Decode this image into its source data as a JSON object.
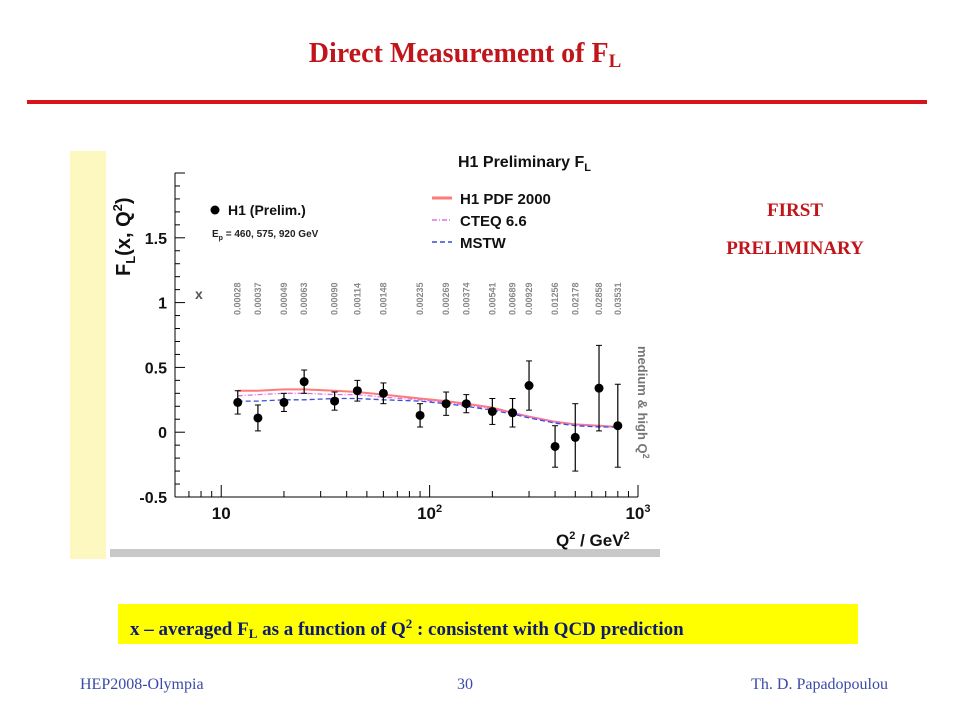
{
  "slide": {
    "title_main": "Direct Measurement of F",
    "title_sub": "L",
    "note_line1": "FIRST",
    "note_line2": "PRELIMINARY",
    "caption": {
      "part1": "x – averaged F",
      "sub1": "L",
      "part2": " as a function of Q",
      "sup1": "2",
      "part3": "  : consistent with QCD  prediction"
    },
    "footer_left": "HEP2008-Olympia",
    "footer_center": "30",
    "footer_right": "Th. D. Papadopoulou"
  },
  "colors": {
    "title": "#c0161b",
    "rule": "#d8141b",
    "caption_bg": "#ffff00",
    "caption_text": "#0d1b6e",
    "footer": "#3a4aa6",
    "h1pdf": "#ff7a7a",
    "cteq": "#e070e0",
    "mstw": "#3b4fd6"
  },
  "chart_data": {
    "type": "scatter",
    "title": "H1 Preliminary F",
    "title_sub": "L",
    "ylabel": "F",
    "ylabel_sub": "L",
    "ylabel_rest": "(x, Q",
    "ylabel_sup": "2",
    "ylabel_close": ")",
    "xlabel": "Q",
    "xlabel_sup1": "2",
    "xlabel_mid": " / GeV",
    "xlabel_sup2": "2",
    "xscale": "log",
    "xlim": [
      6,
      1000
    ],
    "ylim": [
      -0.5,
      2.0
    ],
    "x_ticks": [
      {
        "value": 10,
        "base": "10",
        "exp": ""
      },
      {
        "value": 100,
        "base": "10",
        "exp": "2"
      },
      {
        "value": 1000,
        "base": "10",
        "exp": "3"
      }
    ],
    "y_ticks": [
      {
        "value": -0.5,
        "label": "-0.5"
      },
      {
        "value": 0,
        "label": "0"
      },
      {
        "value": 0.5,
        "label": "0.5"
      },
      {
        "value": 1,
        "label": "1"
      },
      {
        "value": 1.5,
        "label": "1.5"
      }
    ],
    "x_label_title": "x",
    "x_values_label": [
      "0.00028",
      "0.00037",
      "0.00049",
      "0.00063",
      "0.00090",
      "0.00114",
      "0.00148",
      "0.00235",
      "0.00269",
      "0.00374",
      "0.00541",
      "0.00689",
      "0.00929",
      "0.01256",
      "0.02178",
      "0.02858",
      "0.03531"
    ],
    "side_label": "medium & high Q",
    "side_label_sup": "2",
    "legend": {
      "data_label": "H1 (Prelim.)",
      "beam_text": "E",
      "beam_sub": "p",
      "beam_rest": " = 460, 575, 920 GeV",
      "lines": [
        "H1 PDF 2000",
        "CTEQ 6.6",
        "MSTW"
      ],
      "placement": "top-right"
    },
    "series": [
      {
        "name": "H1 (Prelim.)",
        "points": [
          {
            "x": 12,
            "y": 0.23,
            "err": 0.09
          },
          {
            "x": 15,
            "y": 0.11,
            "err": 0.1
          },
          {
            "x": 20,
            "y": 0.23,
            "err": 0.07
          },
          {
            "x": 25,
            "y": 0.39,
            "err": 0.09
          },
          {
            "x": 35,
            "y": 0.24,
            "err": 0.07
          },
          {
            "x": 45,
            "y": 0.32,
            "err": 0.08
          },
          {
            "x": 60,
            "y": 0.3,
            "err": 0.08
          },
          {
            "x": 90,
            "y": 0.13,
            "err": 0.09
          },
          {
            "x": 120,
            "y": 0.22,
            "err": 0.09
          },
          {
            "x": 150,
            "y": 0.22,
            "err": 0.07
          },
          {
            "x": 200,
            "y": 0.16,
            "err": 0.1
          },
          {
            "x": 250,
            "y": 0.15,
            "err": 0.11
          },
          {
            "x": 300,
            "y": 0.36,
            "err": 0.19
          },
          {
            "x": 400,
            "y": -0.11,
            "err": 0.16
          },
          {
            "x": 500,
            "y": -0.04,
            "err": 0.26
          },
          {
            "x": 650,
            "y": 0.34,
            "err": 0.33
          },
          {
            "x": 800,
            "y": 0.05,
            "err": 0.32
          }
        ]
      },
      {
        "name": "H1 PDF 2000",
        "x": [
          12,
          15,
          20,
          25,
          35,
          45,
          60,
          90,
          120,
          150,
          200,
          250,
          300,
          400,
          500,
          650,
          800
        ],
        "y": [
          0.32,
          0.32,
          0.33,
          0.33,
          0.32,
          0.31,
          0.29,
          0.26,
          0.24,
          0.22,
          0.19,
          0.15,
          0.12,
          0.08,
          0.06,
          0.05,
          0.04
        ]
      },
      {
        "name": "CTEQ 6.6",
        "x": [
          12,
          15,
          20,
          25,
          35,
          45,
          60,
          90,
          120,
          150,
          200,
          250,
          300,
          400,
          500,
          650,
          800
        ],
        "y": [
          0.28,
          0.29,
          0.3,
          0.3,
          0.29,
          0.29,
          0.27,
          0.25,
          0.23,
          0.21,
          0.18,
          0.15,
          0.12,
          0.08,
          0.06,
          0.05,
          0.04
        ]
      },
      {
        "name": "MSTW",
        "x": [
          12,
          15,
          20,
          25,
          35,
          45,
          60,
          90,
          120,
          150,
          200,
          250,
          300,
          400,
          500,
          650,
          800
        ],
        "y": [
          0.24,
          0.24,
          0.25,
          0.25,
          0.26,
          0.26,
          0.25,
          0.24,
          0.22,
          0.2,
          0.17,
          0.14,
          0.11,
          0.07,
          0.05,
          0.04,
          0.04
        ]
      }
    ]
  }
}
